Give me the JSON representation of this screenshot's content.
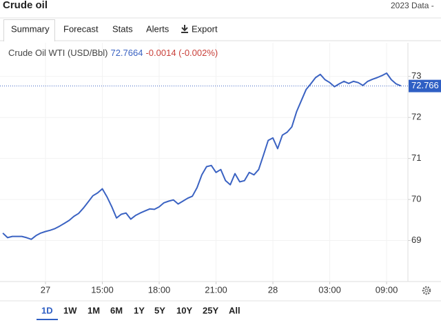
{
  "header": {
    "title": "Crude oil",
    "data_note": "2023 Data -"
  },
  "tabs": [
    "Summary",
    "Forecast",
    "Stats",
    "Alerts",
    "Export"
  ],
  "ranges": [
    "1D",
    "1W",
    "1M",
    "6M",
    "1Y",
    "5Y",
    "10Y",
    "25Y",
    "All"
  ],
  "chart_data": {
    "type": "line",
    "series": [
      {
        "name": "Crude Oil WTI (USD/Bbl)",
        "color": "#3a62c2",
        "values": [
          69.18,
          69.07,
          69.1,
          69.1,
          69.1,
          69.07,
          69.03,
          69.12,
          69.18,
          69.22,
          69.25,
          69.29,
          69.35,
          69.42,
          69.49,
          69.59,
          69.66,
          69.79,
          69.94,
          70.09,
          70.16,
          70.26,
          70.06,
          69.82,
          69.55,
          69.64,
          69.67,
          69.52,
          69.61,
          69.67,
          69.72,
          69.77,
          69.76,
          69.82,
          69.92,
          69.96,
          69.99,
          69.89,
          69.96,
          70.03,
          70.08,
          70.29,
          70.6,
          70.8,
          70.83,
          70.66,
          70.73,
          70.46,
          70.36,
          70.63,
          70.43,
          70.46,
          70.66,
          70.6,
          70.73,
          71.08,
          71.44,
          71.5,
          71.24,
          71.57,
          71.64,
          71.77,
          72.14,
          72.41,
          72.68,
          72.82,
          72.97,
          73.05,
          72.92,
          72.85,
          72.75,
          72.82,
          72.88,
          72.83,
          72.88,
          72.85,
          72.78,
          72.88,
          72.93,
          72.97,
          73.02,
          73.08,
          72.92,
          72.82,
          72.77
        ]
      }
    ],
    "last": {
      "value": 72.7664,
      "label": "72.766"
    },
    "change": "-0.0014 (-0.002%)",
    "xlim": [
      -0.6,
      85.5
    ],
    "xticks": [
      {
        "value": 9,
        "label": "27"
      },
      {
        "value": 21,
        "label": "15:00"
      },
      {
        "value": 33,
        "label": "18:00"
      },
      {
        "value": 45,
        "label": "21:00"
      },
      {
        "value": 57,
        "label": "28"
      },
      {
        "value": 69,
        "label": "03:00"
      },
      {
        "value": 81,
        "label": "09:00"
      }
    ],
    "ylim": [
      68,
      73.82
    ],
    "yticks": [
      69,
      70,
      71,
      72,
      73
    ],
    "grid": true
  }
}
